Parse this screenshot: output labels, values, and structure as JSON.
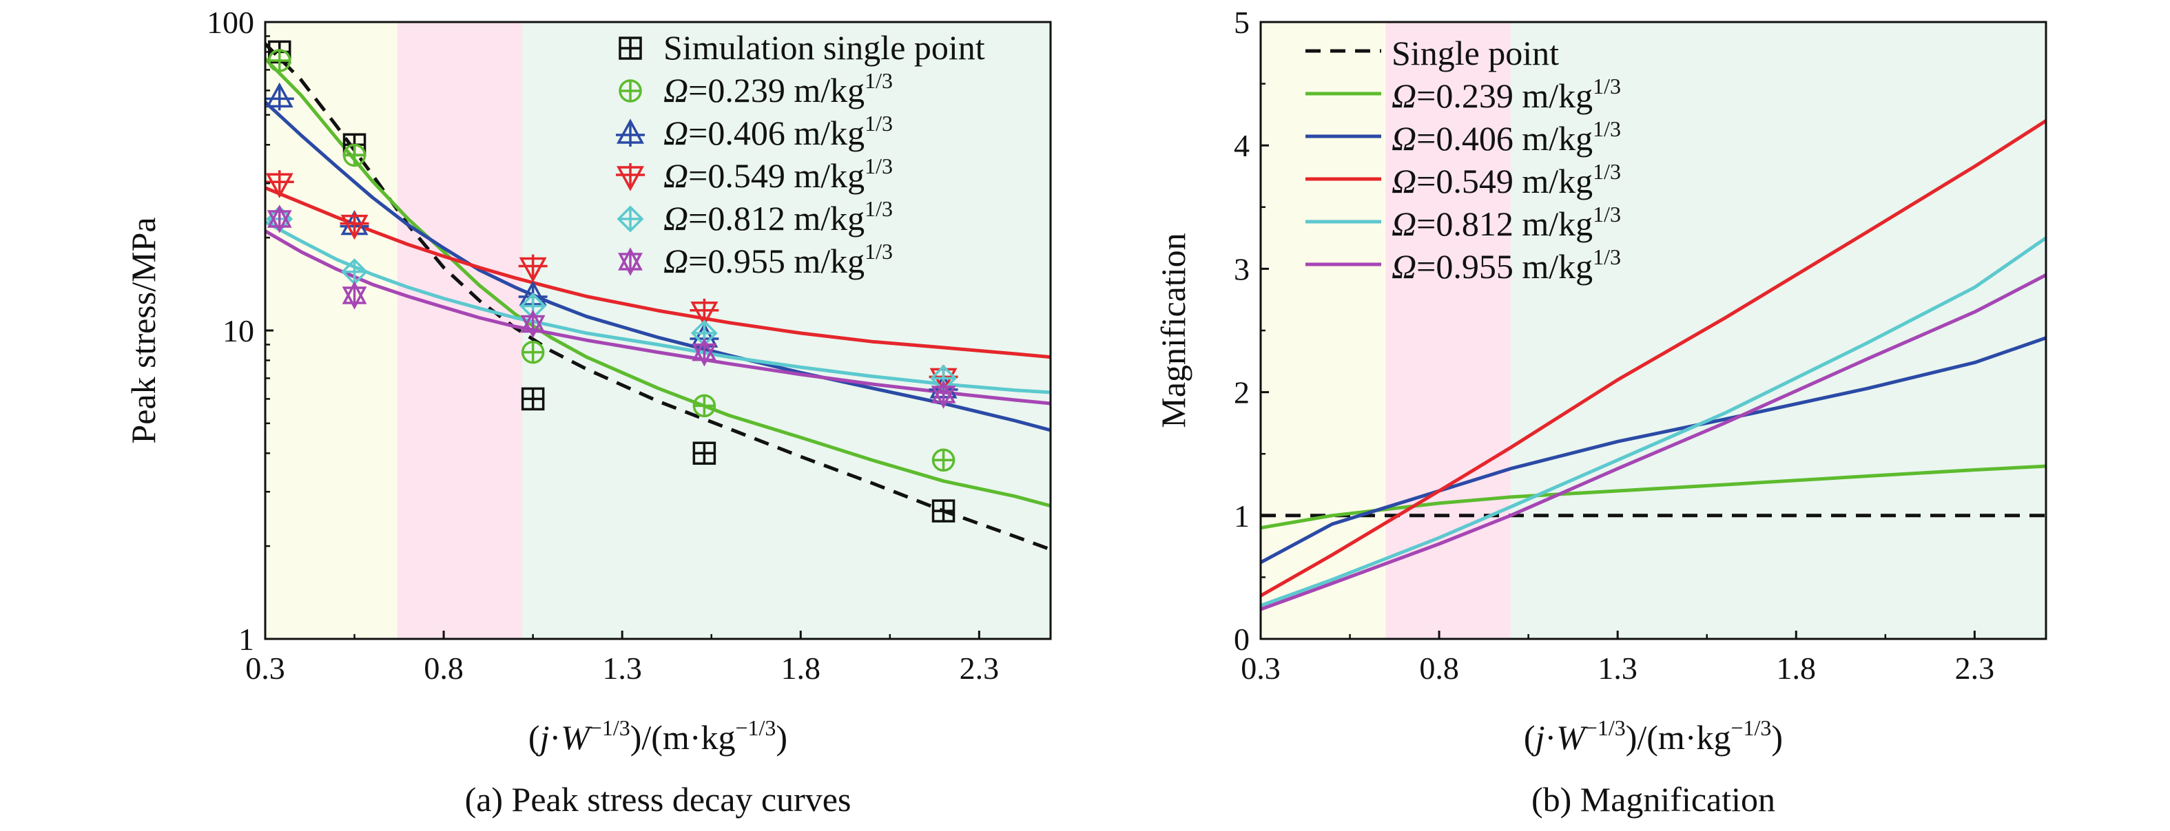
{
  "colors": {
    "black": "#111111",
    "green": "#5dbb2e",
    "blue": "#2b4aa6",
    "red": "#e5262b",
    "cyan": "#5cc9cf",
    "purple": "#a646b4",
    "band_yellow": "#fcfcea",
    "band_pink": "#fde4ef",
    "band_green": "#eaf6ef"
  },
  "chart_data": [
    {
      "type": "line",
      "panel": "a",
      "caption": "(a) Peak stress decay curves",
      "xlabel": {
        "open": "(",
        "j": "j",
        "dot": "·",
        "w": "W",
        "wexp": "−1/3",
        "rest": ")/(m·kg",
        "restexp": "−1/3",
        "close": ")"
      },
      "ylabel": "Peak stress/MPa",
      "y_scale": "log",
      "xlim": [
        0.3,
        2.5
      ],
      "ylim": [
        1,
        100
      ],
      "x_ticks": [
        "0.3",
        "0.8",
        "1.3",
        "1.8",
        "2.3"
      ],
      "y_ticks": [
        "1",
        "10",
        "100"
      ],
      "grid": false,
      "legend_position": "top-right",
      "background_bands": [
        {
          "x0": 0.3,
          "x1": 0.67,
          "color": "band_yellow"
        },
        {
          "x0": 0.67,
          "x1": 1.02,
          "color": "band_pink"
        },
        {
          "x0": 1.02,
          "x1": 2.5,
          "color": "band_green"
        }
      ],
      "series": [
        {
          "name": "Simulation single point",
          "color": "black",
          "marker": "square-plus",
          "line": "dashed",
          "points_x": [
            0.34,
            0.55,
            1.05,
            1.53,
            2.2
          ],
          "points_y": [
            80,
            40,
            6.0,
            4.0,
            2.6
          ],
          "curve_x": [
            0.3,
            0.4,
            0.5,
            0.6,
            0.7,
            0.8,
            0.9,
            1.0,
            1.1,
            1.2,
            1.4,
            1.6,
            1.8,
            2.0,
            2.2,
            2.4,
            2.5
          ],
          "curve_y": [
            85,
            65,
            46,
            32,
            22,
            16,
            12.5,
            10.2,
            8.6,
            7.5,
            5.9,
            4.8,
            3.9,
            3.2,
            2.6,
            2.15,
            1.95
          ]
        },
        {
          "name": "0.239",
          "color": "green",
          "marker": "circle-plus",
          "line": "solid",
          "points_x": [
            0.34,
            0.55,
            1.05,
            1.53,
            2.2
          ],
          "points_y": [
            75,
            37,
            8.5,
            5.7,
            3.8
          ],
          "curve_x": [
            0.3,
            0.4,
            0.5,
            0.6,
            0.7,
            0.8,
            0.9,
            1.0,
            1.1,
            1.2,
            1.4,
            1.6,
            1.8,
            2.0,
            2.2,
            2.4,
            2.5
          ],
          "curve_y": [
            76,
            58,
            42,
            30.5,
            23,
            18,
            14,
            11.3,
            9.5,
            8.2,
            6.5,
            5.3,
            4.5,
            3.8,
            3.25,
            2.9,
            2.7
          ]
        },
        {
          "name": "0.406",
          "color": "blue",
          "marker": "triangle-up",
          "line": "solid",
          "points_x": [
            0.34,
            0.55,
            1.05,
            1.53,
            2.2
          ],
          "points_y": [
            57,
            22,
            13,
            9.5,
            6.5
          ],
          "curve_x": [
            0.3,
            0.4,
            0.5,
            0.6,
            0.7,
            0.8,
            0.9,
            1.0,
            1.1,
            1.2,
            1.4,
            1.6,
            1.8,
            2.0,
            2.2,
            2.4,
            2.5
          ],
          "curve_y": [
            55,
            43,
            34,
            27,
            22,
            18.5,
            15.7,
            13.8,
            12.3,
            11.1,
            9.5,
            8.3,
            7.3,
            6.5,
            5.8,
            5.1,
            4.75
          ]
        },
        {
          "name": "0.549",
          "color": "red",
          "marker": "triangle-down",
          "line": "solid",
          "points_x": [
            0.34,
            0.55,
            1.05,
            1.53,
            2.2
          ],
          "points_y": [
            30,
            22,
            16,
            11.5,
            7.0
          ],
          "curve_x": [
            0.3,
            0.4,
            0.5,
            0.6,
            0.7,
            0.8,
            0.9,
            1.0,
            1.1,
            1.2,
            1.4,
            1.6,
            1.8,
            2.0,
            2.2,
            2.4,
            2.5
          ],
          "curve_y": [
            29,
            26,
            23.3,
            21,
            19,
            17.4,
            16,
            14.8,
            13.8,
            12.9,
            11.6,
            10.6,
            9.8,
            9.2,
            8.8,
            8.4,
            8.2
          ]
        },
        {
          "name": "0.812",
          "color": "cyan",
          "marker": "diamond-plus",
          "line": "solid",
          "points_x": [
            0.34,
            0.55,
            1.05,
            1.53,
            2.2
          ],
          "points_y": [
            23,
            15.5,
            12,
            9.8,
            7.0
          ],
          "curve_x": [
            0.3,
            0.4,
            0.5,
            0.6,
            0.7,
            0.8,
            0.9,
            1.0,
            1.1,
            1.2,
            1.4,
            1.6,
            1.8,
            2.0,
            2.2,
            2.4,
            2.5
          ],
          "curve_y": [
            22.5,
            19.5,
            17,
            15.2,
            13.8,
            12.7,
            11.8,
            11.0,
            10.4,
            9.8,
            9.0,
            8.2,
            7.6,
            7.1,
            6.7,
            6.4,
            6.3
          ]
        },
        {
          "name": "0.955",
          "color": "purple",
          "marker": "star",
          "line": "solid",
          "points_x": [
            0.34,
            0.55,
            1.05,
            1.53,
            2.2
          ],
          "points_y": [
            23,
            13,
            10.5,
            8.5,
            6.2
          ],
          "curve_x": [
            0.3,
            0.4,
            0.5,
            0.6,
            0.7,
            0.8,
            0.9,
            1.0,
            1.1,
            1.2,
            1.4,
            1.6,
            1.8,
            2.0,
            2.2,
            2.4,
            2.5
          ],
          "curve_y": [
            21,
            18,
            15.8,
            14.1,
            12.9,
            11.9,
            11.0,
            10.3,
            9.8,
            9.3,
            8.5,
            7.8,
            7.2,
            6.7,
            6.3,
            5.95,
            5.8
          ]
        }
      ],
      "legend": [
        {
          "series": 0,
          "omega": "",
          "value": "Simulation single point",
          "unit": "",
          "exp": ""
        },
        {
          "series": 1,
          "omega": "Ω",
          "value": "=0.239 m/kg",
          "unit": "",
          "exp": "1/3"
        },
        {
          "series": 2,
          "omega": "Ω",
          "value": "=0.406 m/kg",
          "unit": "",
          "exp": "1/3"
        },
        {
          "series": 3,
          "omega": "Ω",
          "value": "=0.549 m/kg",
          "unit": "",
          "exp": "1/3"
        },
        {
          "series": 4,
          "omega": "Ω",
          "value": "=0.812 m/kg",
          "unit": "",
          "exp": "1/3"
        },
        {
          "series": 5,
          "omega": "Ω",
          "value": "=0.955 m/kg",
          "unit": "",
          "exp": "1/3"
        }
      ]
    },
    {
      "type": "line",
      "panel": "b",
      "caption": "(b) Magnification",
      "xlabel": {
        "open": "(",
        "j": "j",
        "dot": "·",
        "w": "W",
        "wexp": "−1/3",
        "rest": ")/(m·kg",
        "restexp": "−1/3",
        "close": ")"
      },
      "ylabel": "Magnification",
      "y_scale": "linear",
      "xlim": [
        0.3,
        2.5
      ],
      "ylim": [
        0,
        5
      ],
      "x_ticks": [
        "0.3",
        "0.8",
        "1.3",
        "1.8",
        "2.3"
      ],
      "y_ticks": [
        "0",
        "1",
        "2",
        "3",
        "4",
        "5"
      ],
      "grid": false,
      "legend_position": "top-left",
      "background_bands": [
        {
          "x0": 0.3,
          "x1": 0.65,
          "color": "band_yellow"
        },
        {
          "x0": 0.65,
          "x1": 1.0,
          "color": "band_pink"
        },
        {
          "x0": 1.0,
          "x1": 2.5,
          "color": "band_green"
        }
      ],
      "series": [
        {
          "name": "Single point",
          "color": "black",
          "line": "dashed",
          "x": [
            0.3,
            2.5
          ],
          "y": [
            1.0,
            1.0
          ]
        },
        {
          "name": "0.239",
          "color": "green",
          "line": "solid",
          "x": [
            0.3,
            0.5,
            0.8,
            1.0,
            1.3,
            1.6,
            2.0,
            2.3,
            2.5
          ],
          "y": [
            0.9,
            1.0,
            1.1,
            1.15,
            1.2,
            1.25,
            1.32,
            1.37,
            1.4
          ]
        },
        {
          "name": "0.406",
          "color": "blue",
          "line": "solid",
          "x": [
            0.3,
            0.5,
            0.8,
            1.0,
            1.3,
            1.6,
            2.0,
            2.3,
            2.5
          ],
          "y": [
            0.62,
            0.93,
            1.2,
            1.38,
            1.6,
            1.78,
            2.03,
            2.24,
            2.44
          ]
        },
        {
          "name": "0.549",
          "color": "red",
          "line": "solid",
          "x": [
            0.3,
            0.5,
            0.8,
            1.0,
            1.3,
            1.6,
            2.0,
            2.3,
            2.5
          ],
          "y": [
            0.35,
            0.68,
            1.2,
            1.55,
            2.1,
            2.6,
            3.3,
            3.83,
            4.2
          ]
        },
        {
          "name": "0.812",
          "color": "cyan",
          "line": "solid",
          "x": [
            0.3,
            0.5,
            0.8,
            1.0,
            1.3,
            1.6,
            2.0,
            2.3,
            2.5
          ],
          "y": [
            0.27,
            0.48,
            0.82,
            1.07,
            1.45,
            1.83,
            2.4,
            2.85,
            3.25
          ]
        },
        {
          "name": "0.955",
          "color": "purple",
          "line": "solid",
          "x": [
            0.3,
            0.5,
            0.8,
            1.0,
            1.3,
            1.6,
            2.0,
            2.3,
            2.5
          ],
          "y": [
            0.24,
            0.45,
            0.77,
            1.0,
            1.38,
            1.75,
            2.27,
            2.65,
            2.95
          ]
        }
      ],
      "legend": [
        {
          "series": 0,
          "omega": "",
          "value": "Single point",
          "unit": "",
          "exp": ""
        },
        {
          "series": 1,
          "omega": "Ω",
          "value": "=0.239 m/kg",
          "unit": "",
          "exp": "1/3"
        },
        {
          "series": 2,
          "omega": "Ω",
          "value": "=0.406 m/kg",
          "unit": "",
          "exp": "1/3"
        },
        {
          "series": 3,
          "omega": "Ω",
          "value": "=0.549 m/kg",
          "unit": "",
          "exp": "1/3"
        },
        {
          "series": 4,
          "omega": "Ω",
          "value": "=0.812 m/kg",
          "unit": "",
          "exp": "1/3"
        },
        {
          "series": 5,
          "omega": "Ω",
          "value": "=0.955 m/kg",
          "unit": "",
          "exp": "1/3"
        }
      ]
    }
  ]
}
